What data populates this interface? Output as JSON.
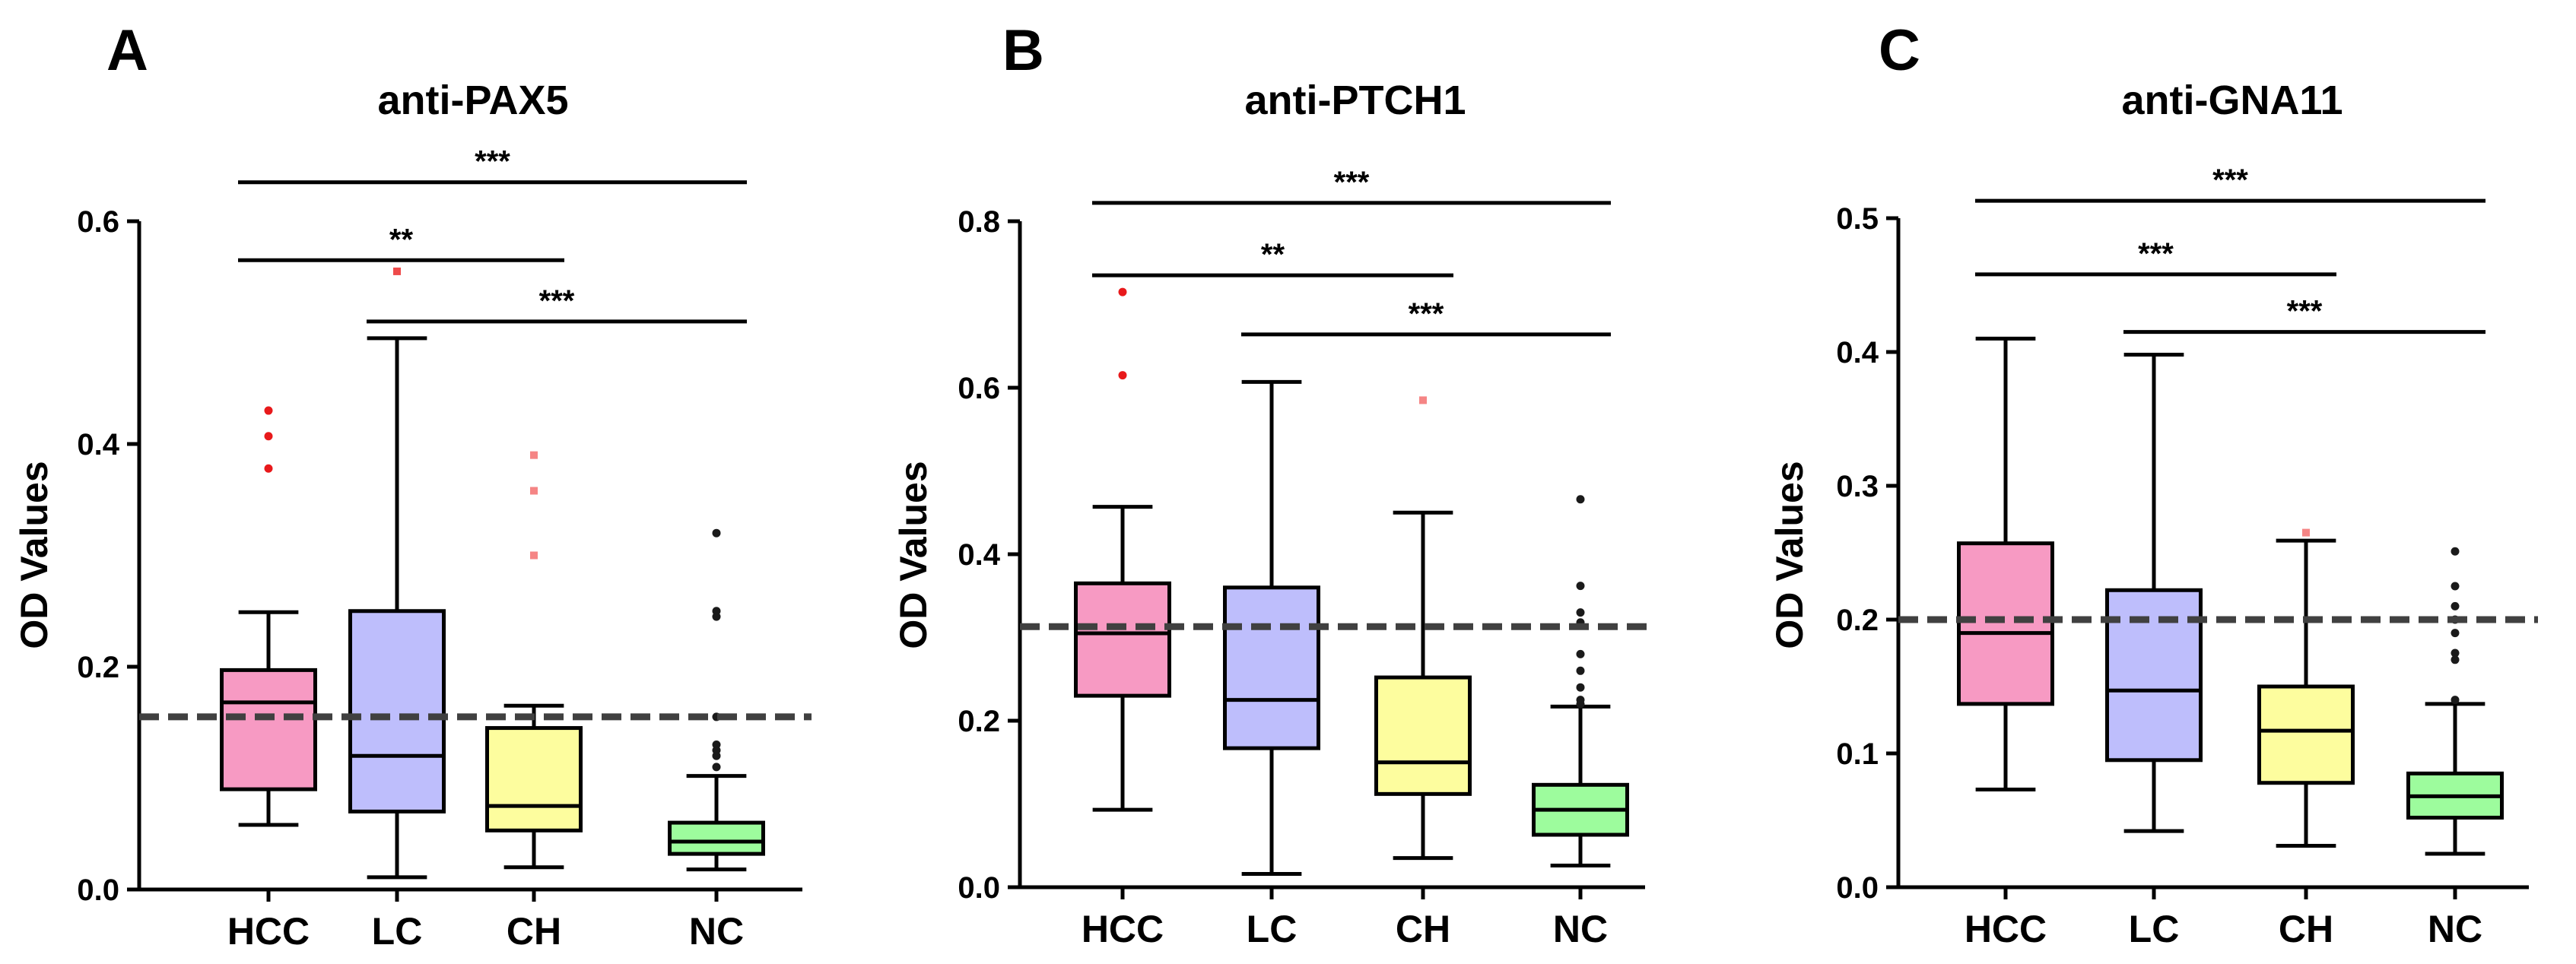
{
  "figure": {
    "panel_letters": [
      "A",
      "B",
      "C"
    ]
  },
  "colors": {
    "HCC": "#f79ac3",
    "LC": "#bebefc",
    "CH": "#fdfd9e",
    "NC": "#9dfc9d",
    "outliers": [
      "#e8191b",
      "#ee4a4a",
      "#f58585",
      "#1a1a1a"
    ],
    "cutoff": "#404040"
  },
  "chart_data": [
    {
      "type": "box",
      "panel": "A",
      "title": "anti-PAX5",
      "ylabel": "OD Values",
      "ylim": [
        0,
        0.6
      ],
      "yticks": [
        "0.0",
        "0.2",
        "0.4",
        "0.6"
      ],
      "categories": [
        "HCC",
        "LC",
        "CH",
        "NC"
      ],
      "boxes": [
        {
          "whisker_low": 0.058,
          "q1": 0.09,
          "median": 0.168,
          "q3": 0.197,
          "whisker_high": 0.249
        },
        {
          "whisker_low": 0.011,
          "q1": 0.07,
          "median": 0.12,
          "q3": 0.25,
          "whisker_high": 0.495
        },
        {
          "whisker_low": 0.02,
          "q1": 0.053,
          "median": 0.075,
          "q3": 0.145,
          "whisker_high": 0.165
        },
        {
          "whisker_low": 0.018,
          "q1": 0.032,
          "median": 0.043,
          "q3": 0.06,
          "whisker_high": 0.102
        }
      ],
      "outliers": [
        [
          0.43,
          0.407,
          0.378
        ],
        [
          0.555
        ],
        [
          0.39,
          0.358,
          0.3
        ],
        [
          0.32,
          0.25,
          0.245,
          0.155,
          0.13,
          0.125,
          0.12,
          0.11
        ]
      ],
      "cutoff": 0.155,
      "significance": [
        {
          "from": 0,
          "to": 3,
          "y": 0.635,
          "label": "***"
        },
        {
          "from": 0,
          "to": 2,
          "y": 0.565,
          "label": "**"
        },
        {
          "from": 1,
          "to": 3,
          "y": 0.51,
          "label": "***"
        }
      ]
    },
    {
      "type": "box",
      "panel": "B",
      "title": "anti-PTCH1",
      "ylabel": "OD Values",
      "ylim": [
        0,
        0.8
      ],
      "yticks": [
        "0.0",
        "0.2",
        "0.4",
        "0.6",
        "0.8"
      ],
      "categories": [
        "HCC",
        "LC",
        "CH",
        "NC"
      ],
      "boxes": [
        {
          "whisker_low": 0.093,
          "q1": 0.23,
          "median": 0.305,
          "q3": 0.365,
          "whisker_high": 0.457
        },
        {
          "whisker_low": 0.016,
          "q1": 0.167,
          "median": 0.225,
          "q3": 0.36,
          "whisker_high": 0.607
        },
        {
          "whisker_low": 0.035,
          "q1": 0.112,
          "median": 0.15,
          "q3": 0.252,
          "whisker_high": 0.45
        },
        {
          "whisker_low": 0.026,
          "q1": 0.063,
          "median": 0.093,
          "q3": 0.123,
          "whisker_high": 0.217
        }
      ],
      "outliers": [
        [
          0.715,
          0.615
        ],
        [],
        [
          0.585
        ],
        [
          0.466,
          0.362,
          0.33,
          0.318,
          0.28,
          0.26,
          0.24,
          0.225,
          0.22
        ]
      ],
      "cutoff": 0.313,
      "significance": [
        {
          "from": 0,
          "to": 3,
          "y": 0.822,
          "label": "***"
        },
        {
          "from": 0,
          "to": 2,
          "y": 0.735,
          "label": "**"
        },
        {
          "from": 1,
          "to": 3,
          "y": 0.664,
          "label": "***"
        }
      ]
    },
    {
      "type": "box",
      "panel": "C",
      "title": "anti-GNA11",
      "ylabel": "OD Values",
      "ylim": [
        0,
        0.5
      ],
      "yticks": [
        "0.0",
        "0.1",
        "0.2",
        "0.3",
        "0.4",
        "0.5"
      ],
      "categories": [
        "HCC",
        "LC",
        "CH",
        "NC"
      ],
      "boxes": [
        {
          "whisker_low": 0.073,
          "q1": 0.137,
          "median": 0.19,
          "q3": 0.257,
          "whisker_high": 0.41
        },
        {
          "whisker_low": 0.042,
          "q1": 0.095,
          "median": 0.147,
          "q3": 0.222,
          "whisker_high": 0.398
        },
        {
          "whisker_low": 0.031,
          "q1": 0.078,
          "median": 0.117,
          "q3": 0.15,
          "whisker_high": 0.259
        },
        {
          "whisker_low": 0.025,
          "q1": 0.052,
          "median": 0.068,
          "q3": 0.085,
          "whisker_high": 0.137
        }
      ],
      "outliers": [
        [],
        [],
        [
          0.265
        ],
        [
          0.251,
          0.225,
          0.21,
          0.2,
          0.19,
          0.175,
          0.17,
          0.14
        ]
      ],
      "cutoff": 0.2,
      "significance": [
        {
          "from": 0,
          "to": 3,
          "y": 0.513,
          "label": "***"
        },
        {
          "from": 0,
          "to": 2,
          "y": 0.458,
          "label": "***"
        },
        {
          "from": 1,
          "to": 3,
          "y": 0.415,
          "label": "***"
        }
      ]
    }
  ]
}
